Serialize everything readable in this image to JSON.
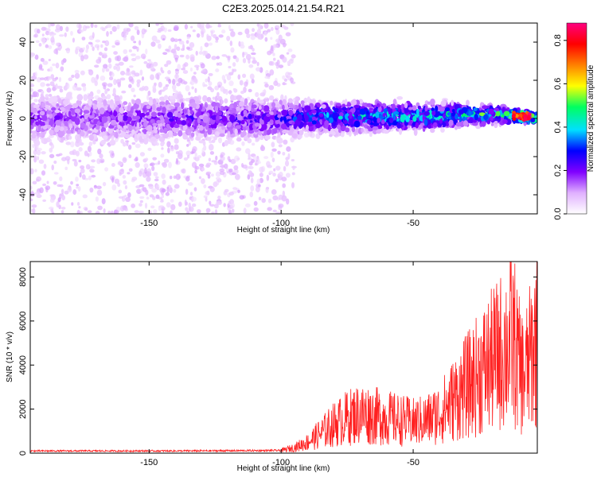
{
  "title": "C2E3.2025.014.21.54.R21",
  "chart_data": [
    {
      "type": "heatmap",
      "xlabel": "Height of straight line (km)",
      "ylabel": "Frequency (Hz)",
      "xlim": [
        -195,
        -3
      ],
      "ylim": [
        -50,
        50
      ],
      "xticks": [
        -150,
        -100,
        -50
      ],
      "yticks": [
        -40,
        -20,
        0,
        20,
        40
      ],
      "grid": false,
      "colorbar": {
        "label": "Normalized spectral amplitude",
        "range": [
          0,
          0.88
        ],
        "ticks": [
          0.0,
          0.2,
          0.4,
          0.6,
          0.8
        ],
        "colors": [
          "#ffffff",
          "#e0b0ff",
          "#8000ff",
          "#0000ff",
          "#00e0ff",
          "#00ff60",
          "#ffff00",
          "#ff8000",
          "#ff0000",
          "#ff0080"
        ]
      },
      "band_profile": [
        {
          "x": -195,
          "center": 0,
          "halfwidth": 8,
          "amp": 0.18
        },
        {
          "x": -150,
          "center": 0,
          "halfwidth": 8,
          "amp": 0.2
        },
        {
          "x": -100,
          "center": 0,
          "halfwidth": 7,
          "amp": 0.25
        },
        {
          "x": -90,
          "center": 1,
          "halfwidth": 5,
          "amp": 0.35
        },
        {
          "x": -70,
          "center": 1,
          "halfwidth": 5,
          "amp": 0.4
        },
        {
          "x": -50,
          "center": 1,
          "halfwidth": 5,
          "amp": 0.42
        },
        {
          "x": -30,
          "center": 2,
          "halfwidth": 4,
          "amp": 0.45
        },
        {
          "x": -15,
          "center": 2,
          "halfwidth": 3,
          "amp": 0.5
        },
        {
          "x": -8,
          "center": 1,
          "halfwidth": 2,
          "amp": 0.85
        },
        {
          "x": -3,
          "center": 0,
          "halfwidth": 2,
          "amp": 0.5
        }
      ]
    },
    {
      "type": "line",
      "xlabel": "Height of straight line (km)",
      "ylabel": "SNR (10 * v/v)",
      "xlim": [
        -195,
        -3
      ],
      "ylim": [
        0,
        8700
      ],
      "xticks": [
        -150,
        -100,
        -50
      ],
      "yticks": [
        0,
        2000,
        4000,
        6000,
        8000
      ],
      "grid": false,
      "series": [
        {
          "color": "#ff2020",
          "x": [
            -195,
            -180,
            -160,
            -140,
            -120,
            -100,
            -95,
            -90,
            -85,
            -80,
            -75,
            -70,
            -65,
            -60,
            -55,
            -50,
            -45,
            -40,
            -35,
            -30,
            -25,
            -20,
            -15,
            -12,
            -10,
            -8,
            -6,
            -4,
            -3
          ],
          "y": [
            100,
            100,
            100,
            100,
            110,
            120,
            250,
            500,
            900,
            1300,
            1600,
            1800,
            1700,
            1600,
            1500,
            1400,
            1500,
            1800,
            2400,
            3000,
            3600,
            4200,
            4800,
            5200,
            4000,
            3500,
            4200,
            5000,
            5500
          ]
        }
      ]
    }
  ]
}
